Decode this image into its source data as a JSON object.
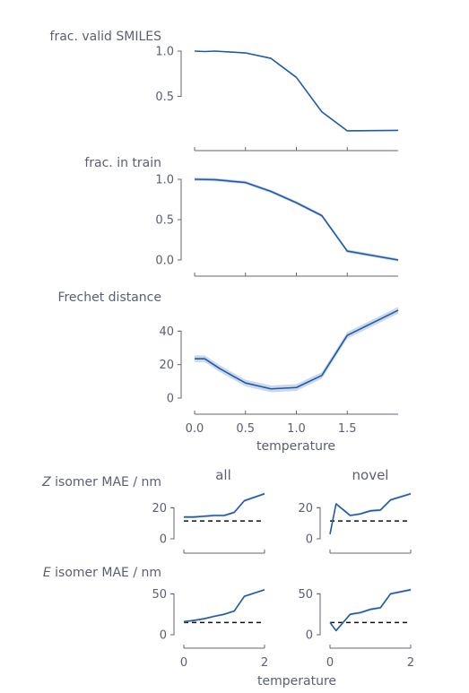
{
  "colors": {
    "series": "#1f5aa6",
    "band": "#b9cbe6",
    "axis": "#606478",
    "text": "#5a5f73",
    "reference": "#111111"
  },
  "chart_data": [
    {
      "type": "line",
      "ylabel": "frac. valid SMILES",
      "x": [
        0.0,
        0.1,
        0.2,
        0.5,
        0.75,
        1.0,
        1.25,
        1.5,
        2.0
      ],
      "series": [
        {
          "values": [
            1.0,
            0.995,
            1.0,
            0.98,
            0.92,
            0.71,
            0.33,
            0.12,
            0.125
          ]
        }
      ],
      "ylim": [
        0.1,
        1.0
      ],
      "yticks": [
        0.5,
        1.0
      ],
      "ytick_labels": [
        "0.5",
        "1.0"
      ],
      "xlim": [
        0,
        2
      ],
      "xticks": [
        0.0,
        0.5,
        1.0,
        1.5
      ],
      "show_xtick_labels": false,
      "grid": false
    },
    {
      "type": "line",
      "ylabel": "frac. in train",
      "x": [
        0.0,
        0.2,
        0.5,
        0.75,
        1.0,
        1.25,
        1.5,
        2.0
      ],
      "series": [
        {
          "values": [
            1.0,
            0.995,
            0.96,
            0.85,
            0.71,
            0.55,
            0.11,
            0.0
          ],
          "band": 0.02
        }
      ],
      "ylim": [
        0.0,
        1.0
      ],
      "yticks": [
        0.0,
        0.5,
        1.0
      ],
      "ytick_labels": [
        "0.0",
        "0.5",
        "1.0"
      ],
      "xlim": [
        0,
        2
      ],
      "xticks": [
        0.0,
        0.5,
        1.0,
        1.5
      ],
      "show_xtick_labels": false,
      "grid": false
    },
    {
      "type": "line",
      "ylabel": "Frechet distance",
      "x": [
        0.0,
        0.1,
        0.25,
        0.5,
        0.75,
        1.0,
        1.25,
        1.5,
        2.0
      ],
      "series": [
        {
          "values": [
            23.5,
            23.5,
            17.5,
            9.0,
            5.5,
            6.3,
            13.5,
            37.5,
            52.5
          ],
          "band": 2.0
        }
      ],
      "ylim": [
        0,
        52
      ],
      "yticks": [
        0,
        20,
        40
      ],
      "ytick_labels": [
        "0",
        "20",
        "40"
      ],
      "xlim": [
        0,
        2
      ],
      "xticks": [
        0.0,
        0.5,
        1.0,
        1.5
      ],
      "xtick_labels": [
        "0.0",
        "0.5",
        "1.0",
        "1.5"
      ],
      "show_xtick_labels": true,
      "xlabel": "temperature",
      "grid": false
    },
    {
      "type": "line",
      "title": "all",
      "ylabel_prefix": "Z",
      "ylabel": "isomer MAE / nm",
      "x": [
        0.0,
        0.25,
        0.5,
        0.75,
        1.0,
        1.25,
        1.5,
        2.0
      ],
      "series": [
        {
          "values": [
            14.0,
            14.0,
            14.5,
            15.0,
            15.0,
            17.0,
            24.5,
            29.0
          ],
          "band": 0.8
        }
      ],
      "reference": 11.5,
      "ylim": [
        0,
        30
      ],
      "yticks": [
        0,
        20
      ],
      "ytick_labels": [
        "0",
        "20"
      ],
      "xlim": [
        0,
        2
      ],
      "xticks": [],
      "show_xtick_labels": false,
      "grid": false
    },
    {
      "type": "line",
      "title": "novel",
      "x": [
        0.0,
        0.15,
        0.5,
        0.75,
        1.0,
        1.25,
        1.5,
        2.0
      ],
      "series": [
        {
          "values": [
            3.0,
            22.5,
            15.0,
            16.0,
            18.0,
            18.5,
            25.0,
            29.0
          ],
          "band": 0.8
        }
      ],
      "reference": 11.5,
      "ylim": [
        0,
        30
      ],
      "yticks": [
        0,
        20
      ],
      "ytick_labels": [
        "0",
        "20"
      ],
      "xlim": [
        0,
        2
      ],
      "xticks": [],
      "show_xtick_labels": false,
      "grid": false
    },
    {
      "type": "line",
      "ylabel_prefix": "E",
      "ylabel": "isomer MAE / nm",
      "x": [
        0.0,
        0.25,
        0.5,
        0.75,
        1.0,
        1.25,
        1.5,
        2.0
      ],
      "series": [
        {
          "values": [
            16.0,
            17.5,
            19.5,
            22.5,
            25.0,
            29.0,
            47.0,
            55.0
          ],
          "band": 1.2
        }
      ],
      "reference": 15.0,
      "ylim": [
        0,
        57
      ],
      "yticks": [
        0,
        50
      ],
      "ytick_labels": [
        "0",
        "50"
      ],
      "xlim": [
        0,
        2
      ],
      "xticks": [
        0,
        2
      ],
      "xtick_labels": [
        "0",
        "2"
      ],
      "show_xtick_labels": true,
      "xlabel": "temperature",
      "grid": false
    },
    {
      "type": "line",
      "x": [
        0.0,
        0.15,
        0.5,
        0.75,
        1.0,
        1.25,
        1.5,
        2.0
      ],
      "series": [
        {
          "values": [
            15.0,
            5.0,
            25.0,
            27.0,
            31.0,
            33.0,
            50.0,
            55.0
          ],
          "band": 1.5
        }
      ],
      "reference": 15.0,
      "ylim": [
        0,
        57
      ],
      "yticks": [
        0,
        50
      ],
      "ytick_labels": [
        "0",
        "50"
      ],
      "xlim": [
        0,
        2
      ],
      "xticks": [
        0,
        2
      ],
      "xtick_labels": [
        "0",
        "2"
      ],
      "show_xtick_labels": true,
      "grid": false
    }
  ]
}
